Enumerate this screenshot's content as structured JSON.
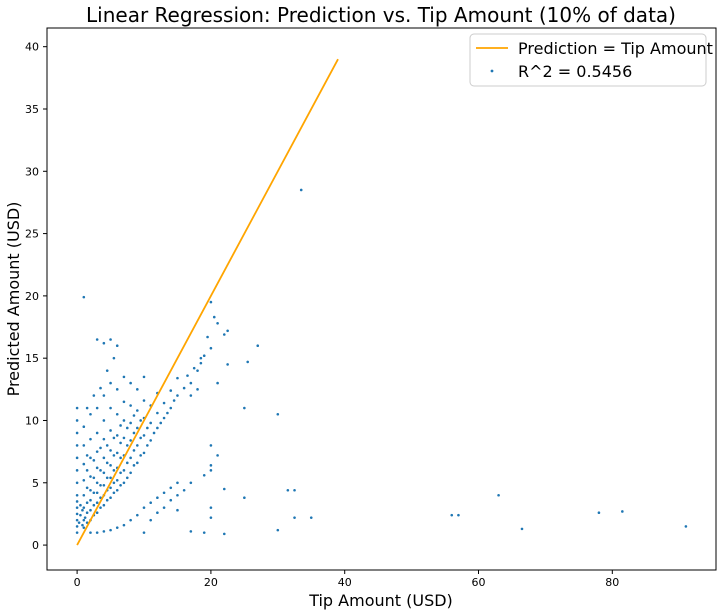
{
  "chart_data": {
    "type": "scatter",
    "title": "Linear Regression: Prediction vs. Tip Amount (10% of data)",
    "xlabel": "Tip Amount (USD)",
    "ylabel": "Predicted Amount (USD)",
    "xlim": [
      -4.5,
      95.5
    ],
    "ylim": [
      -2,
      41.5
    ],
    "xticks": [
      0,
      20,
      40,
      60,
      80
    ],
    "yticks": [
      0,
      5,
      10,
      15,
      20,
      25,
      30,
      35,
      40
    ],
    "grid": false,
    "legend_position": "top-right",
    "colors": {
      "line": "#ffa500",
      "points": "#1f77b4"
    },
    "series": [
      {
        "kind": "line",
        "name": "Prediction = Tip Amount",
        "x": [
          0,
          39
        ],
        "y": [
          0,
          39
        ]
      },
      {
        "kind": "scatter",
        "name": "R^2 = 0.5456",
        "points": [
          [
            0.0,
            1.0
          ],
          [
            0.0,
            1.5
          ],
          [
            0.0,
            2.0
          ],
          [
            0.0,
            2.5
          ],
          [
            0.0,
            3.0
          ],
          [
            0.0,
            3.5
          ],
          [
            0.0,
            4.0
          ],
          [
            0.0,
            5.0
          ],
          [
            0.0,
            6.0
          ],
          [
            0.0,
            7.0
          ],
          [
            0.0,
            8.0
          ],
          [
            0.0,
            9.0
          ],
          [
            0.0,
            10.0
          ],
          [
            0.0,
            11.0
          ],
          [
            0.3,
            1.8
          ],
          [
            0.5,
            2.4
          ],
          [
            0.5,
            3.2
          ],
          [
            0.8,
            1.6
          ],
          [
            0.8,
            2.8
          ],
          [
            1.0,
            1.4
          ],
          [
            1.0,
            2.0
          ],
          [
            1.0,
            3.0
          ],
          [
            1.0,
            4.0
          ],
          [
            1.0,
            5.2
          ],
          [
            1.0,
            6.5
          ],
          [
            1.0,
            8.0
          ],
          [
            1.0,
            9.5
          ],
          [
            1.2,
            2.2
          ],
          [
            1.5,
            1.8
          ],
          [
            1.5,
            2.6
          ],
          [
            1.5,
            3.4
          ],
          [
            1.5,
            4.6
          ],
          [
            1.5,
            6.0
          ],
          [
            1.5,
            7.2
          ],
          [
            2.0,
            2.0
          ],
          [
            2.0,
            2.8
          ],
          [
            2.0,
            3.6
          ],
          [
            2.0,
            4.4
          ],
          [
            2.0,
            5.5
          ],
          [
            2.0,
            7.0
          ],
          [
            2.0,
            8.5
          ],
          [
            2.0,
            10.5
          ],
          [
            2.5,
            2.4
          ],
          [
            2.5,
            3.2
          ],
          [
            2.5,
            4.2
          ],
          [
            2.5,
            5.4
          ],
          [
            2.5,
            6.8
          ],
          [
            3.0,
            2.6
          ],
          [
            3.0,
            3.4
          ],
          [
            3.0,
            4.2
          ],
          [
            3.0,
            5.0
          ],
          [
            3.0,
            6.2
          ],
          [
            3.0,
            7.5
          ],
          [
            3.0,
            9.0
          ],
          [
            3.0,
            11.0
          ],
          [
            3.5,
            3.0
          ],
          [
            3.5,
            3.8
          ],
          [
            3.5,
            4.8
          ],
          [
            3.5,
            6.0
          ],
          [
            3.5,
            7.8
          ],
          [
            4.0,
            3.2
          ],
          [
            4.0,
            4.0
          ],
          [
            4.0,
            4.8
          ],
          [
            4.0,
            5.8
          ],
          [
            4.0,
            7.0
          ],
          [
            4.0,
            8.5
          ],
          [
            4.0,
            10.0
          ],
          [
            4.0,
            12.0
          ],
          [
            4.5,
            3.6
          ],
          [
            4.5,
            4.4
          ],
          [
            4.5,
            5.4
          ],
          [
            4.5,
            6.6
          ],
          [
            4.5,
            8.0
          ],
          [
            5.0,
            3.8
          ],
          [
            5.0,
            4.6
          ],
          [
            5.0,
            5.4
          ],
          [
            5.0,
            6.4
          ],
          [
            5.0,
            7.6
          ],
          [
            5.0,
            9.2
          ],
          [
            5.0,
            11.0
          ],
          [
            5.0,
            13.0
          ],
          [
            5.5,
            4.2
          ],
          [
            5.5,
            5.0
          ],
          [
            5.5,
            6.0
          ],
          [
            5.5,
            7.2
          ],
          [
            5.5,
            8.6
          ],
          [
            6.0,
            4.4
          ],
          [
            6.0,
            5.2
          ],
          [
            6.0,
            6.2
          ],
          [
            6.0,
            7.4
          ],
          [
            6.0,
            8.8
          ],
          [
            6.0,
            10.5
          ],
          [
            6.0,
            12.5
          ],
          [
            6.5,
            4.8
          ],
          [
            6.5,
            5.8
          ],
          [
            6.5,
            7.0
          ],
          [
            6.5,
            8.2
          ],
          [
            6.5,
            9.6
          ],
          [
            7.0,
            5.0
          ],
          [
            7.0,
            6.0
          ],
          [
            7.0,
            7.2
          ],
          [
            7.0,
            8.6
          ],
          [
            7.0,
            10.0
          ],
          [
            7.0,
            11.5
          ],
          [
            7.0,
            13.5
          ],
          [
            7.5,
            5.4
          ],
          [
            7.5,
            6.6
          ],
          [
            7.5,
            8.0
          ],
          [
            7.5,
            9.4
          ],
          [
            8.0,
            5.8
          ],
          [
            8.0,
            7.0
          ],
          [
            8.0,
            8.4
          ],
          [
            8.0,
            9.8
          ],
          [
            8.0,
            11.2
          ],
          [
            8.0,
            13.0
          ],
          [
            8.5,
            6.4
          ],
          [
            8.5,
            7.6
          ],
          [
            8.5,
            9.0
          ],
          [
            8.5,
            10.4
          ],
          [
            9.0,
            6.6
          ],
          [
            9.0,
            8.0
          ],
          [
            9.0,
            9.4
          ],
          [
            9.0,
            10.8
          ],
          [
            9.0,
            12.5
          ],
          [
            9.5,
            7.2
          ],
          [
            9.5,
            8.6
          ],
          [
            9.5,
            10.0
          ],
          [
            10.0,
            7.4
          ],
          [
            10.0,
            8.8
          ],
          [
            10.0,
            10.2
          ],
          [
            10.0,
            11.6
          ],
          [
            10.0,
            13.5
          ],
          [
            10.5,
            8.0
          ],
          [
            10.5,
            9.4
          ],
          [
            11.0,
            8.4
          ],
          [
            11.0,
            9.8
          ],
          [
            11.0,
            11.2
          ],
          [
            11.5,
            9.0
          ],
          [
            12.0,
            9.4
          ],
          [
            12.0,
            10.6
          ],
          [
            12.0,
            12.2
          ],
          [
            12.5,
            9.8
          ],
          [
            13.0,
            10.2
          ],
          [
            13.0,
            11.4
          ],
          [
            13.5,
            10.6
          ],
          [
            14.0,
            11.0
          ],
          [
            14.0,
            12.4
          ],
          [
            14.5,
            11.6
          ],
          [
            15.0,
            12.0
          ],
          [
            15.0,
            13.4
          ],
          [
            16.0,
            12.6
          ],
          [
            16.5,
            13.6
          ],
          [
            17.0,
            13.0
          ],
          [
            17.5,
            14.2
          ],
          [
            18.0,
            14.0
          ],
          [
            18.5,
            14.6
          ],
          [
            19.0,
            15.2
          ],
          [
            20.0,
            15.8
          ],
          [
            5.0,
            1.2
          ],
          [
            6.0,
            1.4
          ],
          [
            7.0,
            1.6
          ],
          [
            8.0,
            2.0
          ],
          [
            9.0,
            2.4
          ],
          [
            10.0,
            3.0
          ],
          [
            11.0,
            3.4
          ],
          [
            12.0,
            3.8
          ],
          [
            13.0,
            4.2
          ],
          [
            14.0,
            4.6
          ],
          [
            15.0,
            5.0
          ],
          [
            10.0,
            1.0
          ],
          [
            11.0,
            2.0
          ],
          [
            12.0,
            2.6
          ],
          [
            13.0,
            3.0
          ],
          [
            14.0,
            3.6
          ],
          [
            15.0,
            4.0
          ],
          [
            16.0,
            4.4
          ],
          [
            15.0,
            2.8
          ],
          [
            17.0,
            5.0
          ],
          [
            19.0,
            5.6
          ],
          [
            20.0,
            6.4
          ],
          [
            2.0,
            1.0
          ],
          [
            3.0,
            1.0
          ],
          [
            4.0,
            1.1
          ],
          [
            1.5,
            11.0
          ],
          [
            2.5,
            12.0
          ],
          [
            3.5,
            12.6
          ],
          [
            4.5,
            14.0
          ],
          [
            5.5,
            15.0
          ],
          [
            6.0,
            16.0
          ],
          [
            5.0,
            16.5
          ],
          [
            4.0,
            16.2
          ],
          [
            3.0,
            16.5
          ],
          [
            1.0,
            19.9
          ],
          [
            20.0,
            19.5
          ],
          [
            20.5,
            18.3
          ],
          [
            21.0,
            17.8
          ],
          [
            22.0,
            16.9
          ],
          [
            22.5,
            17.2
          ],
          [
            19.5,
            16.7
          ],
          [
            18.5,
            15.0
          ],
          [
            18.0,
            12.5
          ],
          [
            17.0,
            12.0
          ],
          [
            21.0,
            13.0
          ],
          [
            22.5,
            14.5
          ],
          [
            25.5,
            14.7
          ],
          [
            27.0,
            16.0
          ],
          [
            25.0,
            11.0
          ],
          [
            30.0,
            10.5
          ],
          [
            20.0,
            8.0
          ],
          [
            21.0,
            7.2
          ],
          [
            20.0,
            6.0
          ],
          [
            22.0,
            4.5
          ],
          [
            20.0,
            3.0
          ],
          [
            20.0,
            2.2
          ],
          [
            17.0,
            1.1
          ],
          [
            19.0,
            1.0
          ],
          [
            22.0,
            0.9
          ],
          [
            25.0,
            3.8
          ],
          [
            30.0,
            1.2
          ],
          [
            31.5,
            4.4
          ],
          [
            32.5,
            4.4
          ],
          [
            32.5,
            2.2
          ],
          [
            35.0,
            2.2
          ],
          [
            33.5,
            28.5
          ],
          [
            56.0,
            2.4
          ],
          [
            57.0,
            2.4
          ],
          [
            63.0,
            4.0
          ],
          [
            66.5,
            1.3
          ],
          [
            78.0,
            2.6
          ],
          [
            81.5,
            2.7
          ],
          [
            91.0,
            1.5
          ]
        ]
      }
    ]
  }
}
